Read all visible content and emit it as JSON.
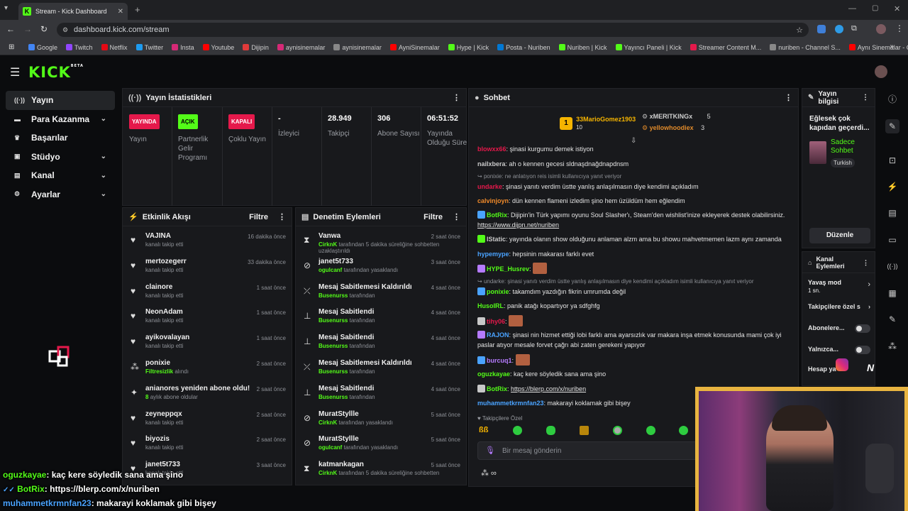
{
  "browser": {
    "tab_title": "Stream - Kick Dashboard",
    "url": "dashboard.kick.com/stream",
    "bookmarks": [
      {
        "label": "Google",
        "color": "#4285f4"
      },
      {
        "label": "Twitch",
        "color": "#9146ff"
      },
      {
        "label": "Netflix",
        "color": "#e50914"
      },
      {
        "label": "Twitter",
        "color": "#1d9bf0"
      },
      {
        "label": "Insta",
        "color": "#d62976"
      },
      {
        "label": "Youtube",
        "color": "#ff0000"
      },
      {
        "label": "Dijipin",
        "color": "#e03a3a"
      },
      {
        "label": "aynisinemalar",
        "color": "#d62976"
      },
      {
        "label": "aynisinemalar",
        "color": "#888888"
      },
      {
        "label": "AyniSinemalar",
        "color": "#ff0000"
      },
      {
        "label": "Hype | Kick",
        "color": "#53fc18"
      },
      {
        "label": "Posta - Nuriben",
        "color": "#0078d4"
      },
      {
        "label": "Nuriben | Kick",
        "color": "#53fc18"
      },
      {
        "label": "Yayıncı Paneli | Kick",
        "color": "#53fc18"
      },
      {
        "label": "Streamer Content M...",
        "color": "#e5194b"
      },
      {
        "label": "nuriben - Channel S...",
        "color": "#888888"
      },
      {
        "label": "Aynı Sinemalar - Ça...",
        "color": "#ff0000"
      }
    ]
  },
  "app": {
    "logo": "KICK",
    "logo_badge": "BETA"
  },
  "nav": [
    {
      "label": "Yayın",
      "icon": "broadcast-icon",
      "glyph": "((·))",
      "active": true,
      "chevron": false
    },
    {
      "label": "Para Kazanma",
      "icon": "money-icon",
      "glyph": "▬",
      "active": false,
      "chevron": true
    },
    {
      "label": "Başarılar",
      "icon": "trophy-icon",
      "glyph": "♛",
      "active": false,
      "chevron": false
    },
    {
      "label": "Stüdyo",
      "icon": "studio-icon",
      "glyph": "▣",
      "active": false,
      "chevron": true
    },
    {
      "label": "Kanal",
      "icon": "channel-icon",
      "glyph": "▤",
      "active": false,
      "chevron": true
    },
    {
      "label": "Ayarlar",
      "icon": "settings-icon",
      "glyph": "⚙",
      "active": false,
      "chevron": true
    }
  ],
  "stats": {
    "title": "Yayın İstatistikleri",
    "items": [
      {
        "badge": "YAYINDA",
        "badge_type": "red",
        "label": "Yayın"
      },
      {
        "badge": "AÇIK",
        "badge_type": "green",
        "label": "Partnerlik Gelir Programı"
      },
      {
        "badge": "KAPALI",
        "badge_type": "red",
        "label": "Çoklu Yayın"
      },
      {
        "value": "-",
        "label": "İzleyici"
      },
      {
        "value": "28.949",
        "label": "Takipçi"
      },
      {
        "value": "306",
        "label": "Abone Sayısı"
      },
      {
        "value": "06:51:52",
        "label": "Yayında Olduğu Süre"
      }
    ]
  },
  "activity": {
    "title": "Etkinlik Akışı",
    "filter": "Filtre",
    "rows": [
      {
        "title": "VAJINA",
        "sub": "kanalı takip etti",
        "time": "16 dakika önce",
        "icon": "heart-icon",
        "glyph": "♥"
      },
      {
        "title": "mertozegerr",
        "sub": "kanalı takip etti",
        "time": "33 dakika önce",
        "icon": "heart-icon",
        "glyph": "♥"
      },
      {
        "title": "clainore",
        "sub": "kanalı takip etti",
        "time": "1 saat önce",
        "icon": "heart-icon",
        "glyph": "♥"
      },
      {
        "title": "NeonAdam",
        "sub": "kanalı takip etti",
        "time": "1 saat önce",
        "icon": "heart-icon",
        "glyph": "♥"
      },
      {
        "title": "ayikovalayan",
        "sub": "kanalı takip etti",
        "time": "1 saat önce",
        "icon": "heart-icon",
        "glyph": "♥"
      },
      {
        "title": "ponixie",
        "sub_green": "Filtresizlik",
        "sub": "alındı",
        "time": "2 saat önce",
        "icon": "reward-icon",
        "glyph": "⁂"
      },
      {
        "title": "anianores yeniden abone oldu!",
        "sub_green": "8",
        "sub": "aylık abone oldular",
        "time": "2 saat önce",
        "icon": "star-icon",
        "glyph": "✦"
      },
      {
        "title": "zeyneppqx",
        "sub": "kanalı takip etti",
        "time": "2 saat önce",
        "icon": "heart-icon",
        "glyph": "♥"
      },
      {
        "title": "biyozis",
        "sub": "kanalı takip etti",
        "time": "2 saat önce",
        "icon": "heart-icon",
        "glyph": "♥"
      },
      {
        "title": "janet5t733",
        "sub": "kanalı takip etti",
        "time": "3 saat önce",
        "icon": "heart-icon",
        "glyph": "♥"
      }
    ]
  },
  "moderation": {
    "title": "Denetim Eylemleri",
    "filter": "Filtre",
    "rows": [
      {
        "title": "Vanwa",
        "sub_green": "CirknK",
        "sub": "tarafından 5 dakika süreliğine sohbetten uzaklaştırıldı",
        "time": "2 saat önce",
        "icon": "timeout-icon",
        "glyph": "⧗"
      },
      {
        "title": "janet5t733",
        "sub_green": "ogulcanf",
        "sub": "tarafından yasaklandı",
        "time": "3 saat önce",
        "icon": "ban-icon",
        "glyph": "⊘"
      },
      {
        "title": "Mesaj Sabitlemesi Kaldırıldı",
        "sub_green": "Busenurss",
        "sub": "tarafından",
        "time": "4 saat önce",
        "icon": "unpin-icon",
        "glyph": "⤫"
      },
      {
        "title": "Mesaj Sabitlendi",
        "sub_green": "Busenurss",
        "sub": "tarafından",
        "time": "4 saat önce",
        "icon": "pin-icon",
        "glyph": "⊥"
      },
      {
        "title": "Mesaj Sabitlendi",
        "sub_green": "Busenurss",
        "sub": "tarafından",
        "time": "4 saat önce",
        "icon": "pin-icon",
        "glyph": "⊥"
      },
      {
        "title": "Mesaj Sabitlemesi Kaldırıldı",
        "sub_green": "Busenurss",
        "sub": "tarafından",
        "time": "4 saat önce",
        "icon": "unpin-icon",
        "glyph": "⤫"
      },
      {
        "title": "Mesaj Sabitlendi",
        "sub_green": "Busenurss",
        "sub": "tarafından",
        "time": "4 saat önce",
        "icon": "pin-icon",
        "glyph": "⊥"
      },
      {
        "title": "MuratStyllle",
        "sub_green": "CirknK",
        "sub": "tarafından yasaklandı",
        "time": "5 saat önce",
        "icon": "ban-icon",
        "glyph": "⊘"
      },
      {
        "title": "MuratStyllle",
        "sub_green": "ogulcanf",
        "sub": "tarafından yasaklandı",
        "time": "5 saat önce",
        "icon": "ban-icon",
        "glyph": "⊘"
      },
      {
        "title": "katmankagan",
        "sub_green": "CirknK",
        "sub": "tarafından 5 dakika süreliğine sohbetten",
        "time": "5 saat önce",
        "icon": "timeout-icon",
        "glyph": "⧗"
      }
    ]
  },
  "chat": {
    "title": "Sohbet",
    "top_gifters": [
      {
        "rank": "1",
        "name": "33MarioGomez1903",
        "count": "10",
        "color": "#f5b400"
      },
      {
        "name": "xMERITKINGx",
        "count": "5",
        "color": "#cfcfcf"
      },
      {
        "name": "yellowhoodiex",
        "count": "3",
        "color": "#e08a2a"
      }
    ],
    "messages": [
      {
        "user": "blowxx66",
        "color": "#e5194b",
        "text": "şinasi kurgumu demek istiyon"
      },
      {
        "user": "nailxbera",
        "color": "#c8c8c8",
        "text": "ah o kennen gecesi sldnaşdnağdnapdnsm"
      },
      {
        "reply": "ponixie: ne anlatıyon reis isimli kullanıcıya yanıt veriyor",
        "user": "undarke",
        "color": "#e5194b",
        "text": "şinasi yanıtı verdim üstte yanlış anlaşılmasın diye kendimi açıkladım"
      },
      {
        "user": "calvinjoyn",
        "color": "#f08a2a",
        "text": "dün kennen flameni izledim şino hem üzüldüm hem eğlendim"
      },
      {
        "user": "BotRix",
        "color": "#53fc18",
        "text": "Dijipin'in Türk yapımı oyunu Soul Slasher'ı, Steam'den wishlist'inize ekleyerek destek olabilirsiniz.",
        "link": "https://www.dijpn.net/nuriben"
      },
      {
        "user": "IStatic",
        "color": "#c8c8c8",
        "text": "yayında olanın show olduğunu anlaman alzm ama bu showu mahvetmemen lazm aynı zamanda"
      },
      {
        "user": "hypemype",
        "color": "#4aa3ff",
        "text": "hepsinin makarası farklı evet"
      },
      {
        "user": "HYPE_Husrev",
        "color": "#53fc18",
        "text": ""
      },
      {
        "reply": "undarke: şinasi yanıtı verdim üstte yanlış anlaşılmasın diye kendimi açıkladım isimli kullanıcıya yanıt veriyor",
        "user": "ponixie",
        "color": "#53fc18",
        "text": "takamdım yazdığın fikrin umrumda değil"
      },
      {
        "user": "HusoIRL",
        "color": "#53fc18",
        "text": "panik atağı kopartıyor ya sdfghfg"
      },
      {
        "user": "tihy06",
        "color": "#e5194b",
        "text": ""
      },
      {
        "user": "RAJON",
        "color": "#4aa3ff",
        "text": "şinasi nin hizmet ettiği lobi farklı ama ayarsızlık var makara inşa etmek konusunda mami çok iyi paslar atıyor mesale forvet çağrı abi zaten gerekeni yapıyor"
      },
      {
        "user": "burcuq1",
        "color": "#b57bff",
        "text": ""
      },
      {
        "user": "oguzkayae",
        "color": "#53fc18",
        "text": "kaç kere söyledik sana ama şino"
      },
      {
        "user": "BotRix",
        "color": "#53fc18",
        "text": "",
        "link": "https://blerp.com/x/nuriben"
      },
      {
        "user": "muhammetkrmnfan23",
        "color": "#4aa3ff",
        "text": "makarayi koklamak gibi bişey"
      }
    ],
    "followers_special": "Takipçilere Özel",
    "input_placeholder": "Bir mesaj gönderin"
  },
  "stream_info": {
    "title": "Yayın bilgisi",
    "stream_title": "Eğlesek çok kapıdan geçerdi...",
    "category": "Sadece Sohbet",
    "language": "Turkish",
    "edit": "Düzenle"
  },
  "channel_actions": {
    "title": "Kanal Eylemleri",
    "slow_mode": "Yavaş mod",
    "slow_mode_value": "1 sn.",
    "followers_only": "Takipçilere özel s",
    "subscribers_only": "Abonelere...",
    "only": "Yalnızca...",
    "account": "Hesap ya"
  },
  "overlay": {
    "line1_user": "oguzkayae",
    "line1_text": ": kaç kere söyledik sana ama şino",
    "line2_user": "BotRix",
    "line2_text": ": https://blerp.com/x/nuriben",
    "line3_user": "muhammetkrmnfan23",
    "line3_text": ": makarayi koklamak gibi bişey"
  }
}
